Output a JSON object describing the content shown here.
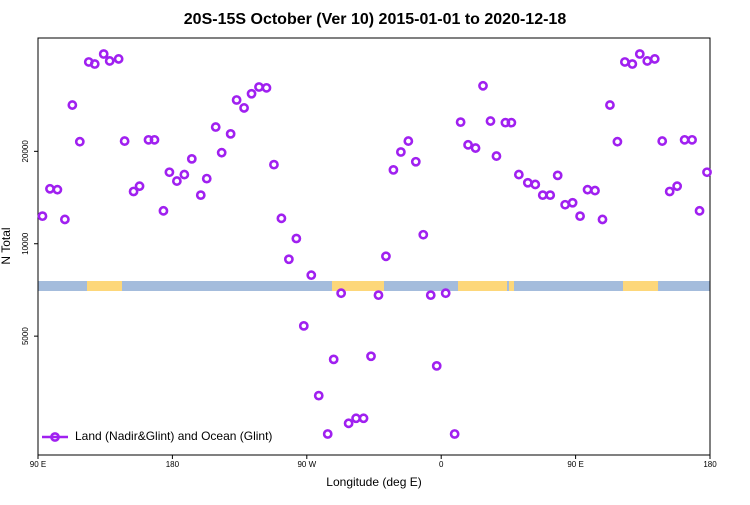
{
  "chart_data": {
    "type": "scatter",
    "title": "20S-15S October (Ver 10)   2015-01-01 to 2020-12-18",
    "x_label": "Longitude (deg E)",
    "y_label": "N Total",
    "xlim": [
      90,
      540
    ],
    "xticks": [
      {
        "value": 90,
        "label": "90 E"
      },
      {
        "value": 180,
        "label": "180"
      },
      {
        "value": 270,
        "label": "90 W"
      },
      {
        "value": 360,
        "label": "0"
      },
      {
        "value": 450,
        "label": "90 E"
      },
      {
        "value": 540,
        "label": "180"
      }
    ],
    "ylim": [
      2050,
      46800
    ],
    "yticks": [
      5000,
      10000,
      20000
    ],
    "log_y": true,
    "legend": "bottom-left",
    "series": [
      {
        "name": "Land (Nadir&Glint) and Ocean (Glint)",
        "color": "#a020f0",
        "x": [
          93,
          98,
          103,
          108,
          113,
          118,
          124,
          128,
          134,
          138,
          144,
          148,
          154,
          158,
          164,
          168,
          174,
          178,
          183,
          188,
          193,
          199,
          203,
          209,
          213,
          219,
          223,
          228,
          233,
          238,
          243,
          248,
          253,
          258,
          263,
          268,
          273,
          278,
          284,
          288,
          293,
          298,
          303,
          308,
          313,
          318,
          323,
          328,
          333,
          338,
          343,
          348,
          353,
          357,
          363,
          369,
          373,
          378,
          383,
          388,
          393,
          397,
          403,
          407,
          412,
          418,
          423,
          428,
          433,
          438,
          443,
          448,
          453,
          458,
          463,
          468,
          473,
          478,
          483,
          488,
          493,
          498,
          503,
          508,
          513,
          518,
          523,
          528,
          533,
          538
        ],
        "values": [
          12300,
          15100,
          15000,
          12000,
          28300,
          21500,
          39100,
          38500,
          41500,
          39400,
          40000,
          21600,
          14800,
          15400,
          21800,
          21800,
          12800,
          17100,
          16000,
          16800,
          18900,
          14400,
          16300,
          24000,
          19800,
          22800,
          29400,
          27700,
          30800,
          32400,
          32200,
          18100,
          12100,
          8900,
          10400,
          5400,
          7900,
          3200,
          2400,
          4200,
          6900,
          2600,
          2700,
          2700,
          4300,
          6800,
          9100,
          17400,
          19900,
          21600,
          18500,
          10700,
          6800,
          4000,
          6900,
          2400,
          24900,
          21000,
          20500,
          32700,
          25100,
          19300,
          24800,
          24800,
          16800,
          15800,
          15600,
          14400,
          14400,
          16700,
          13400,
          13600,
          12300,
          15000,
          14900,
          12000,
          28300,
          21500,
          39100,
          38500,
          41500,
          39400,
          40000,
          21600,
          14800,
          15400,
          21800,
          21800,
          12800,
          17100
        ]
      }
    ]
  }
}
